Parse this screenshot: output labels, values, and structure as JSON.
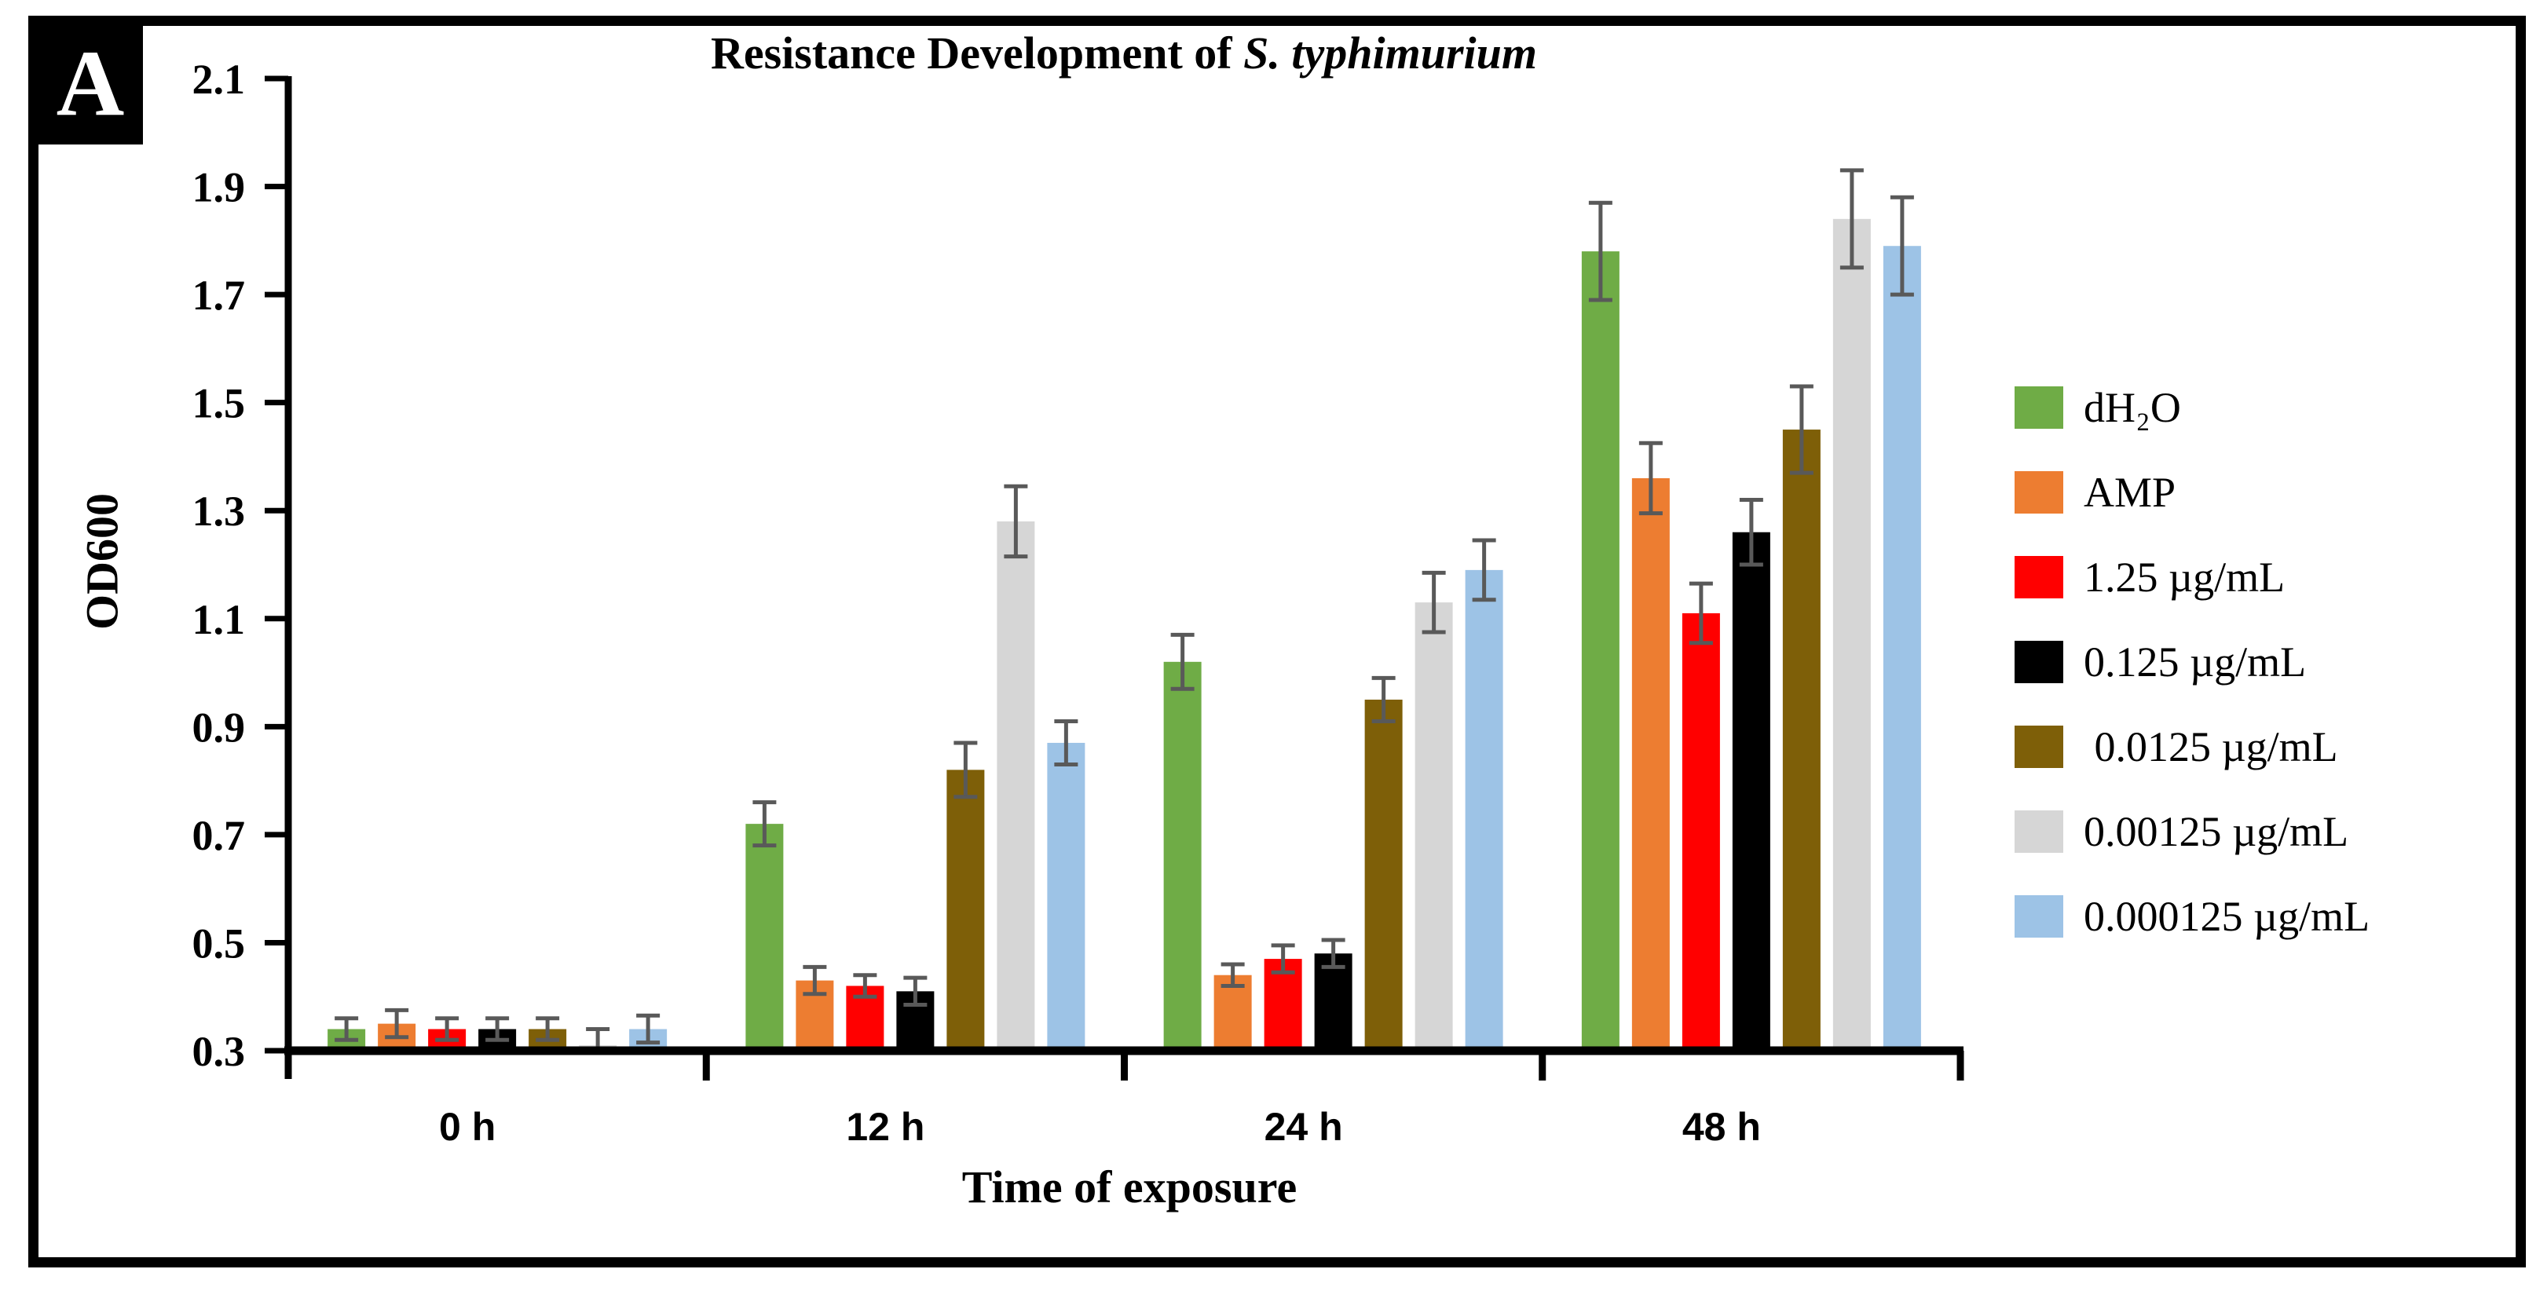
{
  "panel_label": "A",
  "title": {
    "prefix": "Resistance Development of ",
    "species": "S. typhimurium"
  },
  "axes": {
    "y_label": "OD600",
    "x_label": "Time of exposure"
  },
  "chart_data": {
    "type": "bar",
    "title": "Resistance Development of S. typhimurium",
    "xlabel": "Time of exposure",
    "ylabel": "OD600",
    "ylim": [
      0.3,
      2.1
    ],
    "ytick_step": 0.2,
    "ytick_labels": [
      "0.3",
      "0.5",
      "0.7",
      "0.9",
      "1.1",
      "1.3",
      "1.5",
      "1.7",
      "1.9",
      "2.1"
    ],
    "grid": false,
    "legend_position": "right",
    "error_bar_color": "#595959",
    "categories": [
      "0 h",
      "12 h",
      "24 h",
      "48 h"
    ],
    "series": [
      {
        "name": "dH₂O",
        "color": "#6FAC46",
        "values": [
          0.34,
          0.72,
          1.02,
          1.78
        ],
        "errors": [
          0.02,
          0.04,
          0.05,
          0.09
        ]
      },
      {
        "name": "AMP",
        "color": "#ED7D31",
        "values": [
          0.35,
          0.43,
          0.44,
          1.36
        ],
        "errors": [
          0.025,
          0.025,
          0.02,
          0.065
        ]
      },
      {
        "name": "1.25 µg/mL",
        "color": "#FF0000",
        "values": [
          0.34,
          0.42,
          0.47,
          1.11
        ],
        "errors": [
          0.02,
          0.02,
          0.025,
          0.055
        ]
      },
      {
        "name": "0.125 µg/mL",
        "color": "#000000",
        "values": [
          0.34,
          0.41,
          0.48,
          1.26
        ],
        "errors": [
          0.02,
          0.025,
          0.025,
          0.06
        ]
      },
      {
        "name": " 0.0125 µg/mL",
        "color": "#7E5F08",
        "values": [
          0.34,
          0.82,
          0.95,
          1.45
        ],
        "errors": [
          0.02,
          0.05,
          0.04,
          0.08
        ]
      },
      {
        "name": "0.00125 µg/mL",
        "color": "#D6D6D6",
        "values": [
          0.31,
          1.28,
          1.13,
          1.84
        ],
        "errors": [
          0.03,
          0.065,
          0.055,
          0.09
        ]
      },
      {
        "name": "0.000125 µg/mL",
        "color": "#9DC3E6",
        "values": [
          0.34,
          0.87,
          1.19,
          1.79
        ],
        "errors": [
          0.025,
          0.04,
          0.055,
          0.09
        ]
      }
    ]
  }
}
